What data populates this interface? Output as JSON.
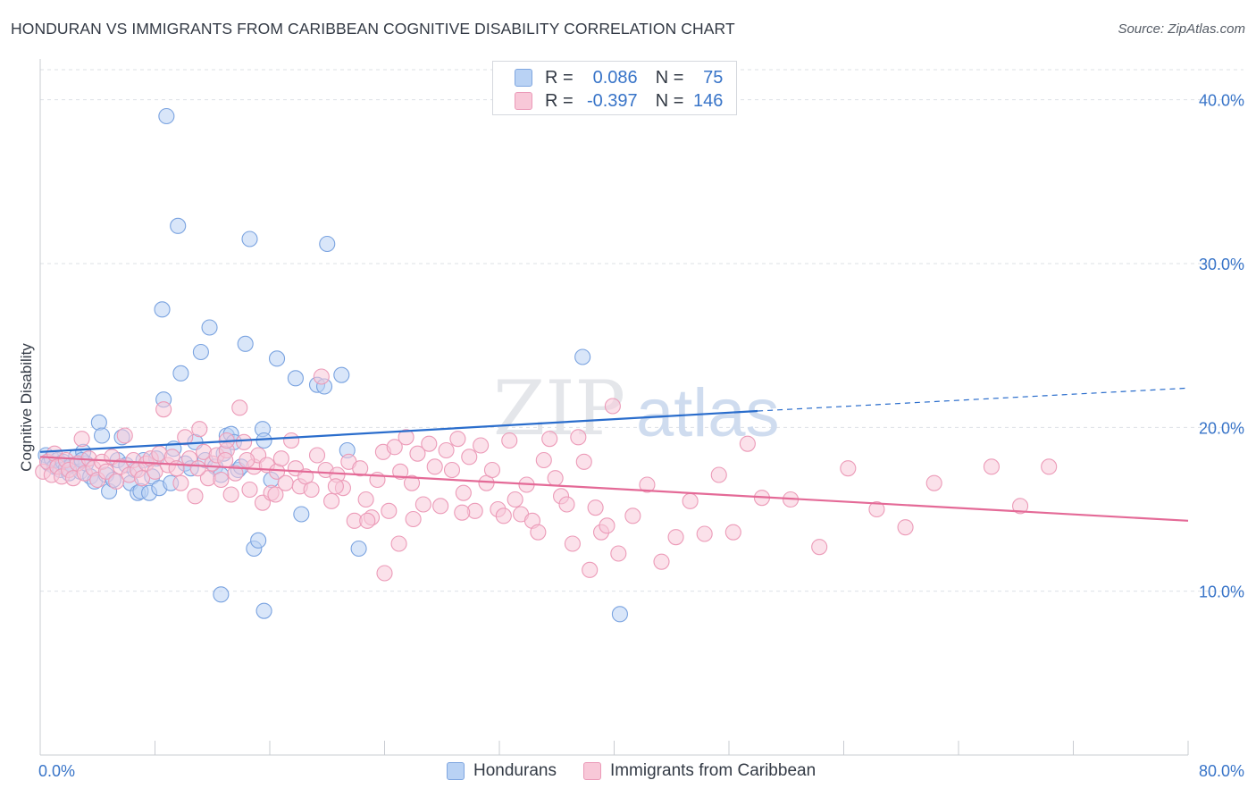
{
  "title": "HONDURAN VS IMMIGRANTS FROM CARIBBEAN COGNITIVE DISABILITY CORRELATION CHART",
  "source": "Source: ZipAtlas.com",
  "watermark": {
    "zip": "ZIP",
    "atlas": "atlas"
  },
  "legend": {
    "r_label": "R =",
    "n_label": "N =",
    "series": [
      {
        "r": "0.086",
        "n": "75"
      },
      {
        "r": "-0.397",
        "n": "146"
      }
    ]
  },
  "bottom_legend": [
    "Hondurans",
    "Immigrants from Caribbean"
  ],
  "colors": {
    "blue_fill": "#b9d2f4",
    "blue_stroke": "#7aa3e0",
    "blue_line": "#2a6dcc",
    "pink_fill": "#f8c8d8",
    "pink_stroke": "#ec9bb8",
    "pink_line": "#e46a97",
    "axis_text": "#3874c8",
    "grid": "#dde0e6"
  },
  "chart_data": {
    "type": "scatter",
    "title": "HONDURAN VS IMMIGRANTS FROM CARIBBEAN COGNITIVE DISABILITY CORRELATION CHART",
    "xlabel": "",
    "ylabel": "Cognitive Disability",
    "xlim": [
      0,
      80
    ],
    "ylim": [
      0,
      42
    ],
    "x_tick_labels": [
      "0.0%",
      "80.0%"
    ],
    "y_ticks": [
      10,
      20,
      30,
      40
    ],
    "y_tick_labels": [
      "10.0%",
      "20.0%",
      "30.0%",
      "40.0%"
    ],
    "grid": true,
    "legend_position": "top-center",
    "series": [
      {
        "name": "Hondurans",
        "r": 0.086,
        "n": 75,
        "trend": {
          "x0": 0,
          "y0": 18.5,
          "x1": 50,
          "y1": 21.0,
          "dashed_to_x": 80,
          "dashed_to_y": 22.4
        },
        "points": [
          [
            0.4,
            18.3
          ],
          [
            0.6,
            17.8
          ],
          [
            0.8,
            18.1
          ],
          [
            1.0,
            17.6
          ],
          [
            1.2,
            18.0
          ],
          [
            1.4,
            17.4
          ],
          [
            1.6,
            17.9
          ],
          [
            1.8,
            17.5
          ],
          [
            2.0,
            17.2
          ],
          [
            2.2,
            17.7
          ],
          [
            2.5,
            18.2
          ],
          [
            2.8,
            17.3
          ],
          [
            3.0,
            18.5
          ],
          [
            3.2,
            17.8
          ],
          [
            3.5,
            17.0
          ],
          [
            3.8,
            16.7
          ],
          [
            4.1,
            20.3
          ],
          [
            4.3,
            19.5
          ],
          [
            4.6,
            17.1
          ],
          [
            4.8,
            16.1
          ],
          [
            5.1,
            16.8
          ],
          [
            5.4,
            18.0
          ],
          [
            5.7,
            19.4
          ],
          [
            6.0,
            17.7
          ],
          [
            6.3,
            16.6
          ],
          [
            6.6,
            17.4
          ],
          [
            6.8,
            16.0
          ],
          [
            7.0,
            16.1
          ],
          [
            7.2,
            18.0
          ],
          [
            7.6,
            16.0
          ],
          [
            7.8,
            17.0
          ],
          [
            8.1,
            18.1
          ],
          [
            8.3,
            16.3
          ],
          [
            8.5,
            27.2
          ],
          [
            8.6,
            21.7
          ],
          [
            8.8,
            39.0
          ],
          [
            9.1,
            16.6
          ],
          [
            9.3,
            18.7
          ],
          [
            9.6,
            32.3
          ],
          [
            9.8,
            23.3
          ],
          [
            10.1,
            17.8
          ],
          [
            10.5,
            17.5
          ],
          [
            10.8,
            19.1
          ],
          [
            11.2,
            24.6
          ],
          [
            11.5,
            18.0
          ],
          [
            11.8,
            26.1
          ],
          [
            12.2,
            17.6
          ],
          [
            12.6,
            17.1
          ],
          [
            12.8,
            18.4
          ],
          [
            13.0,
            19.5
          ],
          [
            13.3,
            19.6
          ],
          [
            13.5,
            19.1
          ],
          [
            13.8,
            17.4
          ],
          [
            14.3,
            25.1
          ],
          [
            14.6,
            31.5
          ],
          [
            14.9,
            12.6
          ],
          [
            15.2,
            13.1
          ],
          [
            15.5,
            19.9
          ],
          [
            15.6,
            19.2
          ],
          [
            16.1,
            16.8
          ],
          [
            17.8,
            23.0
          ],
          [
            16.5,
            24.2
          ],
          [
            18.2,
            14.7
          ],
          [
            19.3,
            22.6
          ],
          [
            19.8,
            22.5
          ],
          [
            20.0,
            31.2
          ],
          [
            21.0,
            23.2
          ],
          [
            21.4,
            18.6
          ],
          [
            22.2,
            12.6
          ],
          [
            37.8,
            24.3
          ],
          [
            12.6,
            9.8
          ],
          [
            15.6,
            8.8
          ],
          [
            40.4,
            8.6
          ],
          [
            14.0,
            17.6
          ],
          [
            2.9,
            18.0
          ]
        ]
      },
      {
        "name": "Immigrants from Caribbean",
        "r": -0.397,
        "n": 146,
        "trend": {
          "x0": 0,
          "y0": 18.2,
          "x1": 80,
          "y1": 14.3
        },
        "points": [
          [
            0.2,
            17.3
          ],
          [
            0.5,
            17.9
          ],
          [
            0.8,
            17.1
          ],
          [
            1.0,
            18.4
          ],
          [
            1.2,
            17.6
          ],
          [
            1.5,
            17.0
          ],
          [
            1.8,
            18.0
          ],
          [
            2.0,
            17.4
          ],
          [
            2.3,
            16.9
          ],
          [
            2.6,
            17.8
          ],
          [
            2.9,
            19.3
          ],
          [
            3.1,
            17.2
          ],
          [
            3.4,
            18.1
          ],
          [
            3.7,
            17.5
          ],
          [
            4.0,
            16.8
          ],
          [
            4.3,
            17.9
          ],
          [
            4.6,
            17.3
          ],
          [
            5.0,
            18.2
          ],
          [
            5.3,
            16.7
          ],
          [
            5.6,
            17.6
          ],
          [
            5.9,
            19.5
          ],
          [
            6.2,
            17.1
          ],
          [
            6.5,
            18.0
          ],
          [
            6.8,
            17.4
          ],
          [
            7.1,
            16.9
          ],
          [
            7.4,
            17.8
          ],
          [
            7.7,
            18.1
          ],
          [
            8.0,
            17.3
          ],
          [
            8.3,
            18.4
          ],
          [
            8.6,
            21.1
          ],
          [
            8.9,
            17.7
          ],
          [
            9.2,
            18.2
          ],
          [
            9.5,
            17.5
          ],
          [
            9.8,
            16.6
          ],
          [
            10.1,
            19.4
          ],
          [
            10.4,
            18.1
          ],
          [
            10.8,
            15.8
          ],
          [
            11.1,
            19.9
          ],
          [
            11.4,
            18.5
          ],
          [
            11.7,
            16.9
          ],
          [
            12.0,
            17.8
          ],
          [
            12.3,
            18.3
          ],
          [
            12.6,
            16.8
          ],
          [
            13.0,
            18.6
          ],
          [
            13.3,
            15.9
          ],
          [
            13.6,
            17.2
          ],
          [
            13.9,
            21.2
          ],
          [
            14.2,
            19.1
          ],
          [
            14.6,
            16.2
          ],
          [
            14.9,
            17.6
          ],
          [
            15.2,
            18.3
          ],
          [
            15.5,
            15.4
          ],
          [
            15.8,
            17.7
          ],
          [
            16.1,
            16.0
          ],
          [
            16.5,
            17.3
          ],
          [
            16.8,
            18.1
          ],
          [
            17.1,
            16.6
          ],
          [
            17.5,
            19.2
          ],
          [
            17.8,
            17.5
          ],
          [
            18.1,
            16.4
          ],
          [
            18.5,
            17.0
          ],
          [
            18.9,
            16.2
          ],
          [
            19.3,
            18.3
          ],
          [
            19.6,
            23.1
          ],
          [
            19.9,
            17.4
          ],
          [
            20.3,
            15.5
          ],
          [
            20.7,
            17.1
          ],
          [
            21.1,
            16.3
          ],
          [
            21.5,
            17.9
          ],
          [
            21.9,
            14.3
          ],
          [
            22.3,
            17.5
          ],
          [
            22.7,
            15.6
          ],
          [
            23.1,
            14.5
          ],
          [
            23.5,
            16.8
          ],
          [
            23.9,
            18.5
          ],
          [
            24.3,
            14.9
          ],
          [
            24.7,
            18.8
          ],
          [
            25.1,
            17.3
          ],
          [
            25.5,
            19.4
          ],
          [
            25.9,
            16.6
          ],
          [
            26.3,
            18.4
          ],
          [
            26.7,
            15.3
          ],
          [
            27.1,
            19.0
          ],
          [
            27.5,
            17.6
          ],
          [
            27.9,
            15.2
          ],
          [
            28.3,
            18.6
          ],
          [
            28.7,
            17.4
          ],
          [
            29.1,
            19.3
          ],
          [
            29.5,
            16.0
          ],
          [
            29.9,
            18.2
          ],
          [
            30.3,
            14.9
          ],
          [
            30.7,
            18.9
          ],
          [
            31.1,
            16.6
          ],
          [
            31.5,
            17.4
          ],
          [
            31.9,
            15.0
          ],
          [
            32.3,
            14.6
          ],
          [
            32.7,
            19.2
          ],
          [
            33.1,
            15.6
          ],
          [
            33.5,
            14.7
          ],
          [
            33.9,
            16.5
          ],
          [
            34.3,
            14.3
          ],
          [
            34.7,
            13.6
          ],
          [
            35.1,
            18.0
          ],
          [
            35.5,
            19.3
          ],
          [
            35.9,
            16.9
          ],
          [
            36.3,
            15.8
          ],
          [
            36.7,
            15.3
          ],
          [
            37.1,
            12.9
          ],
          [
            37.5,
            19.4
          ],
          [
            37.9,
            17.9
          ],
          [
            38.3,
            11.3
          ],
          [
            38.7,
            15.1
          ],
          [
            39.1,
            13.6
          ],
          [
            39.5,
            14.0
          ],
          [
            39.9,
            21.3
          ],
          [
            40.3,
            12.3
          ],
          [
            41.3,
            14.6
          ],
          [
            42.3,
            16.5
          ],
          [
            43.3,
            11.8
          ],
          [
            44.3,
            13.3
          ],
          [
            45.3,
            15.5
          ],
          [
            46.3,
            13.5
          ],
          [
            47.3,
            17.1
          ],
          [
            48.3,
            13.6
          ],
          [
            49.3,
            19.0
          ],
          [
            50.3,
            15.7
          ],
          [
            52.3,
            15.6
          ],
          [
            54.3,
            12.7
          ],
          [
            56.3,
            17.5
          ],
          [
            58.3,
            15.0
          ],
          [
            60.3,
            13.9
          ],
          [
            62.3,
            16.6
          ],
          [
            66.3,
            17.6
          ],
          [
            68.3,
            15.2
          ],
          [
            70.3,
            17.6
          ],
          [
            25.0,
            12.9
          ],
          [
            24.0,
            11.1
          ],
          [
            29.4,
            14.8
          ],
          [
            26.0,
            14.4
          ],
          [
            22.8,
            14.3
          ],
          [
            13.0,
            19.2
          ],
          [
            20.6,
            16.4
          ],
          [
            16.4,
            15.9
          ],
          [
            14.4,
            18.0
          ],
          [
            12.9,
            18.0
          ],
          [
            11.0,
            17.5
          ]
        ]
      }
    ]
  }
}
